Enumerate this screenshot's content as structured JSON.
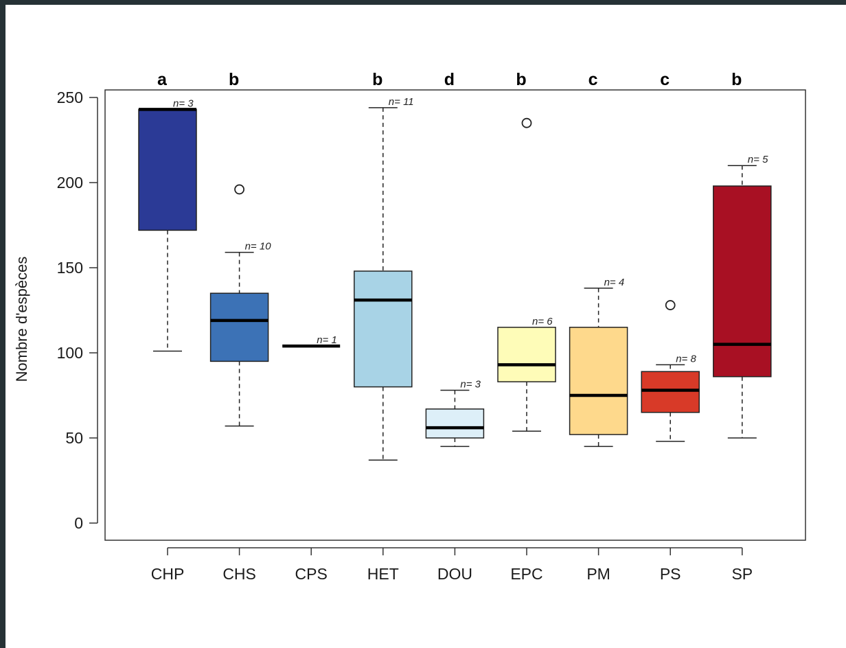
{
  "chart_data": {
    "type": "boxplot",
    "ylabel": "Nombre d'espèces",
    "xlabel": "",
    "title": "",
    "ylim": [
      -10,
      255
    ],
    "yticks": [
      0,
      50,
      100,
      150,
      200,
      250
    ],
    "grid": false,
    "legend": "none",
    "categories": [
      "CHP",
      "CHS",
      "CPS",
      "HET",
      "DOU",
      "EPC",
      "PM",
      "PS",
      "SP"
    ],
    "boxes": [
      {
        "category": "CHP",
        "color": "#2b3a96",
        "min": 101,
        "q1": 172,
        "median": 243,
        "q3": 243,
        "max": 243,
        "outliers": [],
        "n_label": "n= 3",
        "letter": "a"
      },
      {
        "category": "CHS",
        "color": "#3c72b6",
        "min": 57,
        "q1": 95,
        "median": 119,
        "q3": 135,
        "max": 159,
        "outliers": [
          196
        ],
        "n_label": "n= 10",
        "letter": "b"
      },
      {
        "category": "CPS",
        "color": "#3c72b6",
        "min": 104,
        "q1": 104,
        "median": 104,
        "q3": 104,
        "max": 104,
        "outliers": [],
        "n_label": "n= 1",
        "letter": ""
      },
      {
        "category": "HET",
        "color": "#a8d3e6",
        "min": 37,
        "q1": 80,
        "median": 131,
        "q3": 148,
        "max": 244,
        "outliers": [],
        "n_label": "n= 11",
        "letter": "b"
      },
      {
        "category": "DOU",
        "color": "#ddeff8",
        "min": 45,
        "q1": 50,
        "median": 56,
        "q3": 67,
        "max": 78,
        "outliers": [],
        "n_label": "n= 3",
        "letter": "d"
      },
      {
        "category": "EPC",
        "color": "#fefcb8",
        "min": 54,
        "q1": 83,
        "median": 93,
        "q3": 115,
        "max": 115,
        "outliers": [
          235
        ],
        "n_label": "n= 6",
        "letter": "b"
      },
      {
        "category": "PM",
        "color": "#fed98c",
        "min": 45,
        "q1": 52,
        "median": 75,
        "q3": 115,
        "max": 138,
        "outliers": [],
        "n_label": "n= 4",
        "letter": "c"
      },
      {
        "category": "PS",
        "color": "#d83a28",
        "min": 48,
        "q1": 65,
        "median": 78,
        "q3": 89,
        "max": 93,
        "outliers": [
          128
        ],
        "n_label": "n= 8",
        "letter": "c"
      },
      {
        "category": "SP",
        "color": "#a81023",
        "min": 50,
        "q1": 86,
        "median": 105,
        "q3": 198,
        "max": 210,
        "outliers": [],
        "n_label": "n= 5",
        "letter": "b"
      }
    ]
  }
}
